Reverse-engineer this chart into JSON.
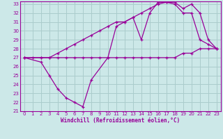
{
  "xlabel": "Windchill (Refroidissement éolien,°C)",
  "bg_color": "#cce8e8",
  "grid_color": "#aacccc",
  "line_color": "#990099",
  "xlim": [
    -0.5,
    23.5
  ],
  "ylim": [
    21,
    33.3
  ],
  "xticks": [
    0,
    1,
    2,
    3,
    4,
    5,
    6,
    7,
    8,
    9,
    10,
    11,
    12,
    13,
    14,
    15,
    16,
    17,
    18,
    19,
    20,
    21,
    22,
    23
  ],
  "yticks": [
    21,
    22,
    23,
    24,
    25,
    26,
    27,
    28,
    29,
    30,
    31,
    32,
    33
  ],
  "line1_x": [
    0,
    1,
    2,
    3,
    4,
    5,
    6,
    7,
    8,
    9,
    10,
    11,
    12,
    13,
    14,
    15,
    16,
    17,
    18,
    19,
    20,
    21,
    22,
    23
  ],
  "line1_y": [
    27,
    27,
    27,
    27,
    27,
    27,
    27,
    27,
    27,
    27,
    27,
    27,
    27,
    27,
    27,
    27,
    27,
    27,
    27,
    27.5,
    27.5,
    28,
    28,
    28
  ],
  "line2_x": [
    0,
    2,
    3,
    4,
    5,
    6,
    7,
    8,
    10,
    11,
    12,
    13,
    14,
    15,
    16,
    17,
    18,
    19,
    20,
    21,
    22,
    23
  ],
  "line2_y": [
    27,
    26.5,
    25,
    23.5,
    22.5,
    22,
    21.5,
    24.5,
    27,
    30.5,
    31,
    31.5,
    29,
    32,
    33.2,
    33.2,
    33,
    32,
    32,
    29,
    28.5,
    28
  ],
  "line3_x": [
    0,
    2,
    3,
    4,
    5,
    6,
    7,
    8,
    9,
    10,
    11,
    12,
    13,
    14,
    15,
    16,
    17,
    18,
    19,
    20,
    21,
    22,
    23
  ],
  "line3_y": [
    27,
    27,
    27,
    27.5,
    28,
    28.5,
    29,
    29.5,
    30,
    30.5,
    31,
    31,
    31.5,
    32,
    32.5,
    33,
    33.2,
    33.2,
    32.5,
    33,
    32,
    29,
    28
  ]
}
